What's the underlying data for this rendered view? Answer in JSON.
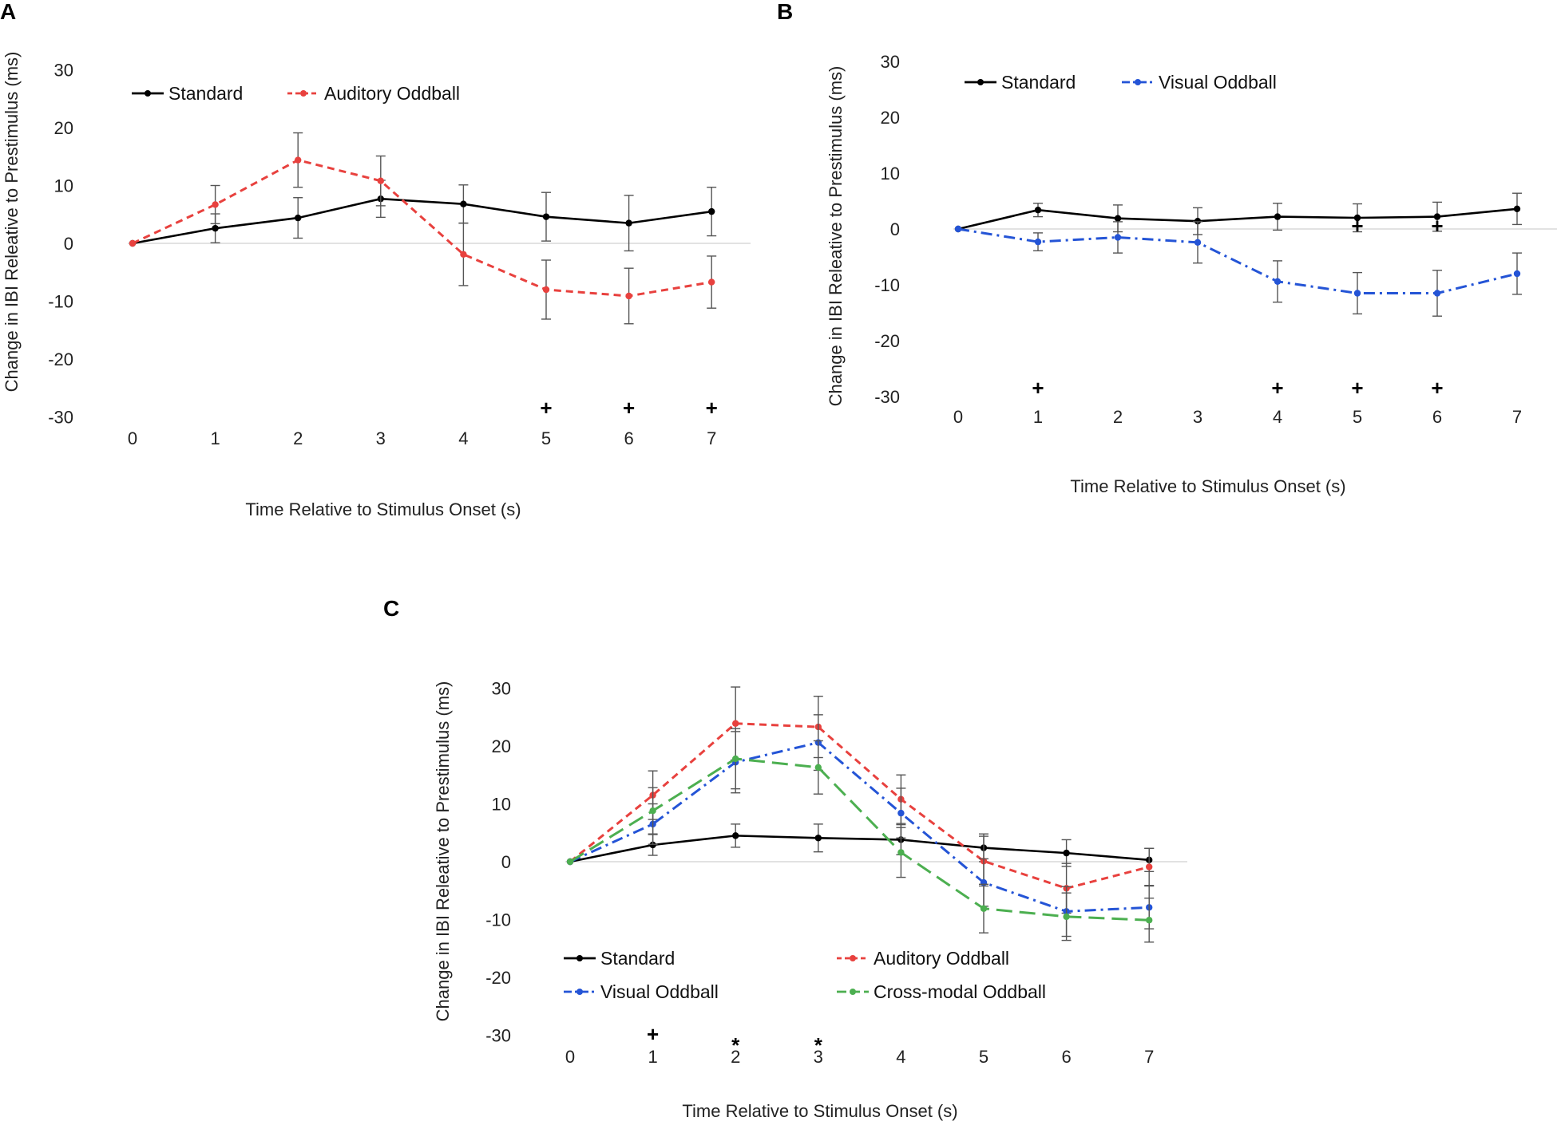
{
  "chart_data": [
    {
      "panel": "A",
      "type": "line",
      "xlabel": "Time Relative to Stimulus Onset (s)",
      "ylabel": "Change in IBI Releative to Prestimulus (ms)",
      "x": [
        0,
        1,
        2,
        3,
        4,
        5,
        6,
        7
      ],
      "ylim": [
        -30,
        30
      ],
      "yticks": [
        30,
        20,
        10,
        0,
        -10,
        -20,
        -30
      ],
      "series": [
        {
          "name": "Standard",
          "color": "#000000",
          "dash": "solid",
          "values": [
            0,
            2.6,
            4.4,
            7.7,
            6.8,
            4.6,
            3.5,
            5.5
          ],
          "errors": [
            0,
            2.5,
            3.5,
            3.2,
            3.3,
            4.2,
            4.8,
            4.2
          ]
        },
        {
          "name": "Auditory Oddball",
          "color": "#e8413e",
          "dash": "dash",
          "values": [
            0,
            6.7,
            14.4,
            10.8,
            -1.9,
            -8.0,
            -9.1,
            -6.7
          ],
          "errors": [
            0,
            3.3,
            4.7,
            4.3,
            5.4,
            5.1,
            4.8,
            4.5
          ]
        }
      ],
      "annotations": [
        {
          "x": 5,
          "label": "+"
        },
        {
          "x": 6,
          "label": "+"
        },
        {
          "x": 7,
          "label": "+"
        }
      ]
    },
    {
      "panel": "B",
      "type": "line",
      "xlabel": "Time Relative to Stimulus Onset (s)",
      "ylabel": "Change in IBI Releative to Prestimulus (ms)",
      "x": [
        0,
        1,
        2,
        3,
        4,
        5,
        6,
        7
      ],
      "ylim": [
        -30,
        30
      ],
      "yticks": [
        30,
        20,
        10,
        0,
        -10,
        -20,
        -30
      ],
      "series": [
        {
          "name": "Standard",
          "color": "#000000",
          "dash": "solid",
          "values": [
            0,
            3.4,
            1.9,
            1.4,
            2.2,
            2.0,
            2.2,
            3.6
          ],
          "errors": [
            0,
            1.2,
            2.4,
            2.4,
            2.4,
            2.5,
            2.6,
            2.8
          ]
        },
        {
          "name": "Visual Oddball",
          "color": "#2454d6",
          "dash": "dashdot",
          "values": [
            0,
            -2.3,
            -1.5,
            -2.4,
            -9.4,
            -11.5,
            -11.5,
            -8.0
          ],
          "errors": [
            0,
            1.6,
            2.8,
            3.7,
            3.7,
            3.7,
            4.1,
            3.7
          ]
        }
      ],
      "annotations": [
        {
          "x": 1,
          "label": "+"
        },
        {
          "x": 4,
          "label": "+"
        },
        {
          "x": 5,
          "label": "+"
        },
        {
          "x": 6,
          "label": "+"
        },
        {
          "x": 5,
          "label": "+",
          "near_zero": true
        },
        {
          "x": 6,
          "label": "+",
          "near_zero": true
        }
      ]
    },
    {
      "panel": "C",
      "type": "line",
      "xlabel": "Time Relative to Stimulus Onset (s)",
      "ylabel": "Change in IBI Releative to Prestimulus (ms)",
      "x": [
        0,
        1,
        2,
        3,
        4,
        5,
        6,
        7
      ],
      "ylim": [
        -30,
        30
      ],
      "yticks": [
        30,
        20,
        10,
        0,
        -10,
        -20,
        -30
      ],
      "series": [
        {
          "name": "Standard",
          "color": "#000000",
          "dash": "solid",
          "values": [
            0,
            2.9,
            4.5,
            4.1,
            3.8,
            2.4,
            1.5,
            0.3
          ],
          "errors": [
            0,
            1.8,
            2.0,
            2.4,
            2.6,
            2.4,
            2.3,
            2.0
          ]
        },
        {
          "name": "Auditory Oddball",
          "color": "#e8413e",
          "dash": "dash",
          "values": [
            0,
            11.5,
            23.9,
            23.3,
            10.8,
            0.1,
            -4.6,
            -0.9
          ],
          "errors": [
            0,
            4.2,
            6.3,
            5.3,
            4.2,
            4.3,
            4.3,
            3.2
          ]
        },
        {
          "name": "Visual Oddball",
          "color": "#2454d6",
          "dash": "dashdot",
          "values": [
            0,
            6.5,
            17.2,
            20.6,
            8.4,
            -3.6,
            -8.6,
            -7.9
          ],
          "errors": [
            0,
            3.5,
            5.3,
            4.8,
            4.3,
            4.1,
            4.3,
            3.7
          ]
        },
        {
          "name": "Cross-modal Oddball",
          "color": "#4caf50",
          "dash": "longdash",
          "values": [
            0,
            8.8,
            17.8,
            16.3,
            1.6,
            -8.1,
            -9.5,
            -10.1
          ],
          "errors": [
            0,
            4.0,
            5.2,
            4.6,
            4.3,
            4.2,
            4.1,
            3.8
          ]
        }
      ],
      "annotations": [
        {
          "x": 1,
          "label": "+"
        },
        {
          "x": 2,
          "label": "*"
        },
        {
          "x": 3,
          "label": "*"
        }
      ]
    }
  ]
}
